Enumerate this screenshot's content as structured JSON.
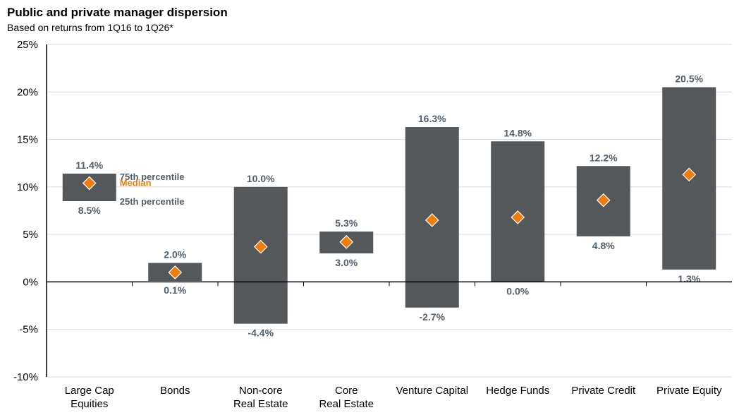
{
  "title": "Public and private manager dispersion",
  "subtitle": "Based on returns from 1Q16 to 1Q26*",
  "chart_data": {
    "type": "bar",
    "title": "Public and private manager dispersion",
    "subtitle": "Based on returns from 1Q16 to 1Q26*",
    "ylim": [
      -10,
      25
    ],
    "yticks": [
      25,
      20,
      15,
      10,
      5,
      0,
      -5,
      -10
    ],
    "ytick_labels": [
      "25%",
      "20%",
      "15%",
      "10%",
      "5%",
      "0%",
      "-5%",
      "-10%"
    ],
    "grid": true,
    "categories": [
      [
        "Large Cap",
        "Equities"
      ],
      [
        "Bonds"
      ],
      [
        "Non-core",
        "Real Estate"
      ],
      [
        "Core",
        "Real Estate"
      ],
      [
        "Venture Capital"
      ],
      [
        "Hedge Funds"
      ],
      [
        "Private Credit"
      ],
      [
        "Private Equity"
      ]
    ],
    "series": [
      {
        "name": "75th percentile",
        "values": [
          11.4,
          2.0,
          10.0,
          5.3,
          16.3,
          14.8,
          12.2,
          20.5
        ]
      },
      {
        "name": "Median",
        "values": [
          10.4,
          1.0,
          3.7,
          4.2,
          6.5,
          6.8,
          8.6,
          11.3
        ]
      },
      {
        "name": "25th percentile",
        "values": [
          8.5,
          0.1,
          -4.4,
          3.0,
          -2.7,
          0.0,
          4.8,
          1.3
        ]
      }
    ],
    "top_labels": [
      "11.4%",
      "2.0%",
      "10.0%",
      "5.3%",
      "16.3%",
      "14.8%",
      "12.2%",
      "20.5%"
    ],
    "bottom_labels": [
      "8.5%",
      "0.1%",
      "-4.4%",
      "3.0%",
      "-2.7%",
      "0.0%",
      "4.8%",
      "1.3%"
    ],
    "legend": {
      "top": "75th percentile",
      "median": "Median",
      "bottom": "25th percentile",
      "placement": "beside first bar"
    },
    "colors": {
      "bar": "#54585b",
      "median": "#f07c0a",
      "label": "#4f5f6d",
      "grid": "#d9d9d9"
    }
  }
}
